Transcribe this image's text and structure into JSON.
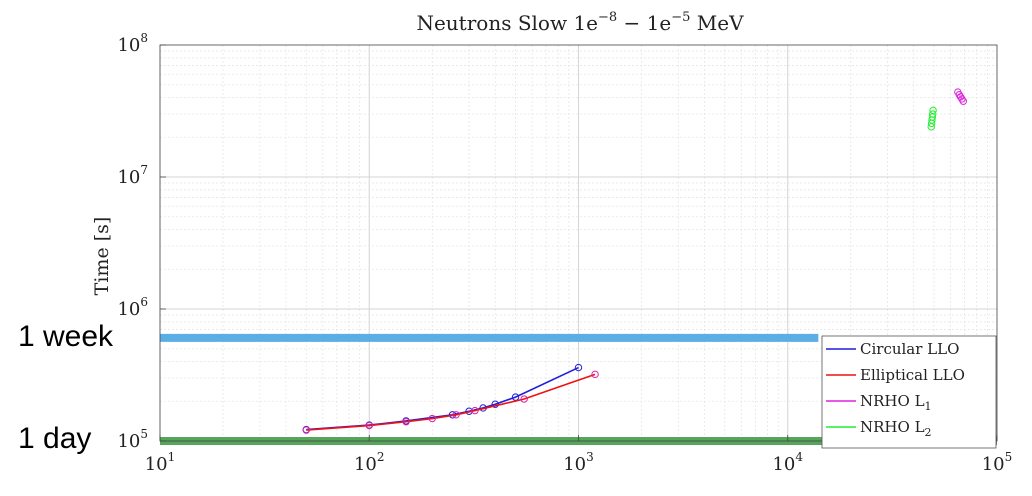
{
  "chart_data": {
    "type": "line",
    "title": "Neutrons Slow 1e⁻⁸ − 1e⁻⁵ MeV",
    "title_parts": {
      "prefix": "Neutrons Slow 1e",
      "exp1": "−8",
      "middle": " − 1e",
      "exp2": "−5",
      "suffix": " MeV"
    },
    "xlabel": "",
    "ylabel": "Time [s]",
    "x_scale": "log",
    "y_scale": "log",
    "xlim": [
      10,
      100000
    ],
    "ylim": [
      100000,
      100000000
    ],
    "grid": true,
    "x_ticks": [
      {
        "value": 10,
        "base": "10",
        "exp": "1"
      },
      {
        "value": 100,
        "base": "10",
        "exp": "2"
      },
      {
        "value": 1000,
        "base": "10",
        "exp": "3"
      },
      {
        "value": 10000,
        "base": "10",
        "exp": "4"
      },
      {
        "value": 100000,
        "base": "10",
        "exp": "5"
      }
    ],
    "y_ticks": [
      {
        "value": 100000,
        "base": "10",
        "exp": "5"
      },
      {
        "value": 1000000,
        "base": "10",
        "exp": "6"
      },
      {
        "value": 10000000,
        "base": "10",
        "exp": "7"
      },
      {
        "value": 100000000,
        "base": "10",
        "exp": "8"
      }
    ],
    "legend_position": "bottom-right",
    "series": [
      {
        "name": "Circular LLO",
        "name_sub": "",
        "color": "#1f1fdd",
        "line": true,
        "x": [
          50,
          100,
          150,
          250,
          300,
          350,
          400,
          500,
          1000
        ],
        "y": [
          122000,
          132000,
          142000,
          158000,
          168000,
          178000,
          190000,
          215000,
          360000
        ]
      },
      {
        "name": "Elliptical LLO",
        "name_sub": "",
        "color": "#ee1111",
        "line": true,
        "x": [
          50,
          100,
          150,
          200,
          260,
          320,
          550,
          1200
        ],
        "y": [
          121000,
          131000,
          140000,
          148000,
          158000,
          170000,
          208000,
          320000
        ]
      },
      {
        "name": "NRHO L",
        "name_sub": "1",
        "color": "#dd22dd",
        "line": false,
        "x": [
          65000,
          66000,
          67000,
          68000,
          69000
        ],
        "y": [
          44000000,
          42000000,
          40500000,
          39000000,
          37500000
        ]
      },
      {
        "name": "NRHO L",
        "name_sub": "2",
        "color": "#22ee33",
        "line": false,
        "x": [
          48500,
          48700,
          48900,
          49100,
          49300,
          49500
        ],
        "y": [
          24000000,
          25500000,
          27000000,
          28500000,
          30000000,
          32000000
        ]
      }
    ],
    "thresholds": [
      {
        "label": "1 week",
        "value": 604800,
        "color": "#5aaee3",
        "x_end": 14000
      },
      {
        "label": "1 day",
        "value": 86400,
        "color": "#55a55a",
        "x_end": 100000
      }
    ]
  }
}
